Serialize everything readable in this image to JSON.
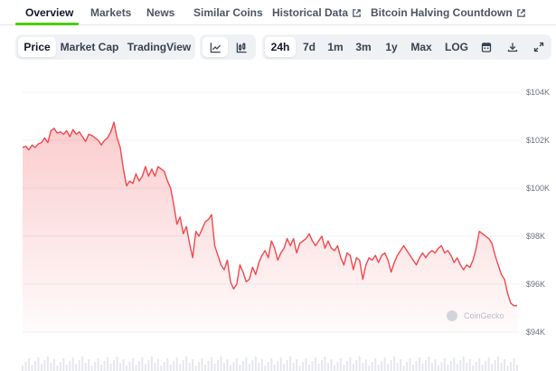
{
  "nav": {
    "tabs": [
      {
        "label": "Overview",
        "active": true
      },
      {
        "label": "Markets"
      },
      {
        "label": "News"
      },
      {
        "label": "Similar Coins"
      },
      {
        "label": "Historical Data",
        "external": true
      },
      {
        "label": "Bitcoin Halving Countdown",
        "external": true
      }
    ],
    "accent_color": "#4bcc00"
  },
  "toolbar": {
    "metric_tabs": [
      {
        "label": "Price",
        "active": true
      },
      {
        "label": "Market Cap"
      },
      {
        "label": "TradingView"
      }
    ],
    "chart_style_icons": [
      {
        "icon": "line-chart-icon",
        "active": true
      },
      {
        "icon": "candlestick-chart-icon"
      }
    ],
    "range_tabs": [
      {
        "label": "24h",
        "active": true
      },
      {
        "label": "7d"
      },
      {
        "label": "1m"
      },
      {
        "label": "3m"
      },
      {
        "label": "1y"
      },
      {
        "label": "Max"
      },
      {
        "label": "LOG"
      }
    ],
    "action_icons": [
      "calendar-icon",
      "download-icon",
      "expand-icon"
    ]
  },
  "watermark": "CoinGecko",
  "chart_data": {
    "type": "area",
    "y_ticks": [
      94000,
      96000,
      98000,
      100000,
      102000,
      104000
    ],
    "y_tick_labels": [
      "$94K",
      "$96K",
      "$98K",
      "$100K",
      "$102K",
      "$104K"
    ],
    "ylim": [
      94000,
      104000
    ],
    "y_axis_position": "right",
    "grid": true,
    "line_color": "#f0484d",
    "series": [
      {
        "values": [
          101700,
          101750,
          101600,
          101800,
          101700,
          101850,
          101900,
          102100,
          101900,
          102400,
          102500,
          102300,
          102350,
          102250,
          102400,
          102150,
          102450,
          102250,
          102350,
          102150,
          101950,
          102250,
          102200,
          102100,
          102000,
          101800,
          102000,
          102100,
          102350,
          102750,
          102100,
          101700,
          100800,
          100100,
          100300,
          100200,
          100600,
          100300,
          100500,
          100900,
          100500,
          100800,
          100500,
          100900,
          100800,
          100700,
          100300,
          100000,
          99300,
          98500,
          98800,
          98100,
          98400,
          97700,
          97100,
          98200,
          98000,
          98300,
          98600,
          98700,
          98900,
          97600,
          97200,
          96800,
          96600,
          97000,
          96100,
          95800,
          96000,
          96800,
          96500,
          96100,
          96200,
          96700,
          96400,
          96900,
          97200,
          97400,
          97100,
          97800,
          97500,
          97000,
          97300,
          97500,
          97900,
          97600,
          97900,
          97300,
          97700,
          97800,
          97900,
          98100,
          97800,
          97600,
          97800,
          98000,
          97500,
          97800,
          97500,
          97400,
          97600,
          97100,
          96800,
          97300,
          97200,
          96600,
          97100,
          97000,
          96200,
          96800,
          97100,
          97000,
          97200,
          96900,
          97200,
          97300,
          97000,
          96500,
          96900,
          97200,
          97400,
          97600,
          97400,
          97200,
          97000,
          96800,
          97100,
          97300,
          97100,
          97300,
          97400,
          97300,
          97500,
          97600,
          97300,
          97400,
          97200,
          96900,
          97100,
          96800,
          96600,
          96800,
          96700,
          97000,
          97500,
          98200,
          98100,
          98000,
          97900,
          97700,
          97200,
          96800,
          96400,
          96200,
          95600,
          95200,
          95100,
          95100
        ]
      }
    ]
  }
}
